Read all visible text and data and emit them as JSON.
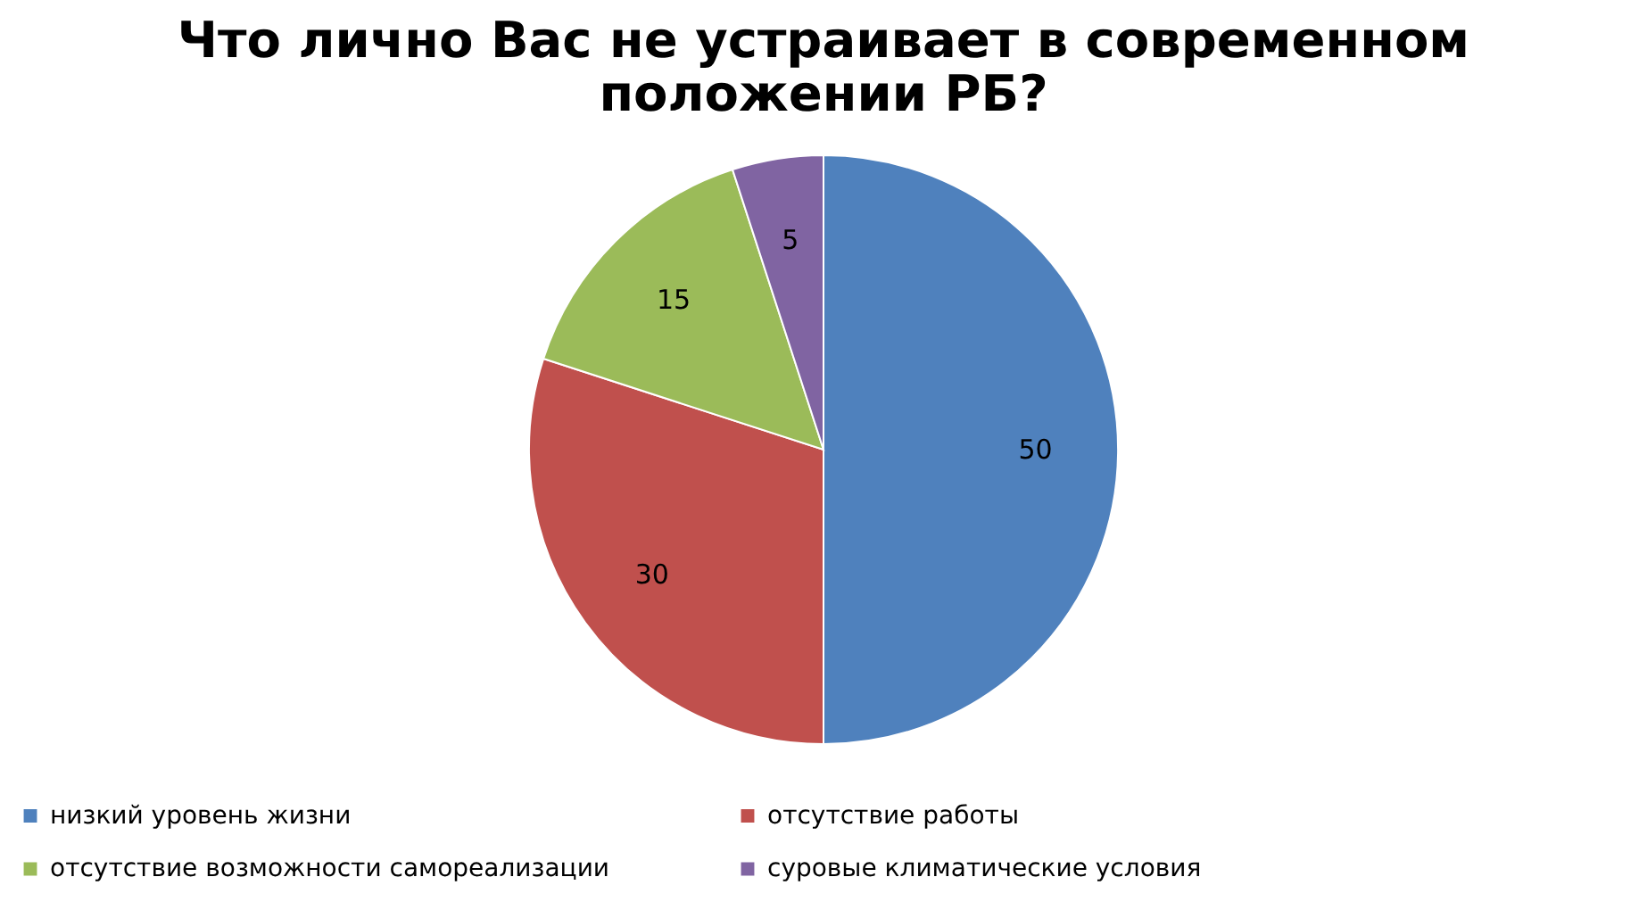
{
  "chart_data": {
    "type": "pie",
    "title": "Что лично Вас не устраивает в современном положении РБ?",
    "categories": [
      "низкий  уровень  жизни",
      "отсутствие  работы",
      "отсутствие  возможности  самореализации",
      "суровые  климатические  условия"
    ],
    "values": [
      50,
      30,
      15,
      5
    ],
    "colors": [
      "#4f81bd",
      "#c0504d",
      "#9bbb59",
      "#8064a2"
    ],
    "data_labels": true,
    "legend": "bottom"
  }
}
